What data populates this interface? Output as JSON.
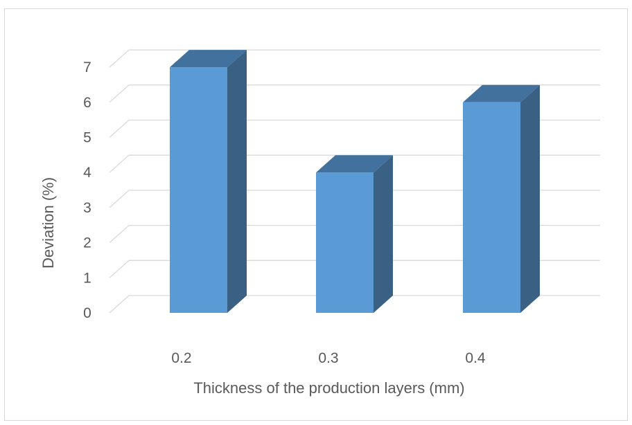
{
  "chart_data": {
    "type": "bar",
    "style": "3d-column",
    "categories": [
      "0.2",
      "0.3",
      "0.4"
    ],
    "series": [
      {
        "values": [
          7,
          4,
          6
        ]
      }
    ],
    "xlabel": "Thickness of the production layers (mm)",
    "ylabel": "Deviation (%)",
    "ylim": [
      0,
      7
    ],
    "yticks": [
      0,
      1,
      2,
      3,
      4,
      5,
      6,
      7
    ],
    "grid": true,
    "legend": "none",
    "colors": {
      "bar_front": "#5B9BD5",
      "bar_side": "#3A6083",
      "bar_top": "#41719C",
      "grid": "#d9d9d9",
      "text": "#595959"
    }
  }
}
